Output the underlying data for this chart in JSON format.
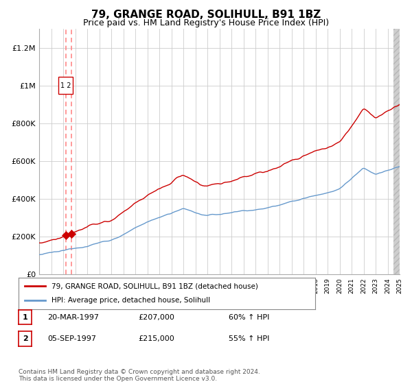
{
  "title": "79, GRANGE ROAD, SOLIHULL, B91 1BZ",
  "subtitle": "Price paid vs. HM Land Registry's House Price Index (HPI)",
  "title_fontsize": 11,
  "subtitle_fontsize": 9,
  "x_start_year": 1995,
  "x_end_year": 2025,
  "ylim": [
    0,
    1300000
  ],
  "yticks": [
    0,
    200000,
    400000,
    600000,
    800000,
    1000000,
    1200000
  ],
  "ytick_labels": [
    "£0",
    "£200K",
    "£400K",
    "£600K",
    "£800K",
    "£1M",
    "£1.2M"
  ],
  "red_line_color": "#cc0000",
  "blue_line_color": "#6699cc",
  "dashed_line_color": "#ff8888",
  "grid_color": "#cccccc",
  "background_color": "#ffffff",
  "sale1_year": 1997.22,
  "sale1_price": 207000,
  "sale2_year": 1997.68,
  "sale2_price": 215000,
  "legend_label_red": "79, GRANGE ROAD, SOLIHULL, B91 1BZ (detached house)",
  "legend_label_blue": "HPI: Average price, detached house, Solihull",
  "table_rows": [
    {
      "num": "1",
      "date": "20-MAR-1997",
      "price": "£207,000",
      "hpi": "60% ↑ HPI"
    },
    {
      "num": "2",
      "date": "05-SEP-1997",
      "price": "£215,000",
      "hpi": "55% ↑ HPI"
    }
  ],
  "footer": "Contains HM Land Registry data © Crown copyright and database right 2024.\nThis data is licensed under the Open Government Licence v3.0."
}
